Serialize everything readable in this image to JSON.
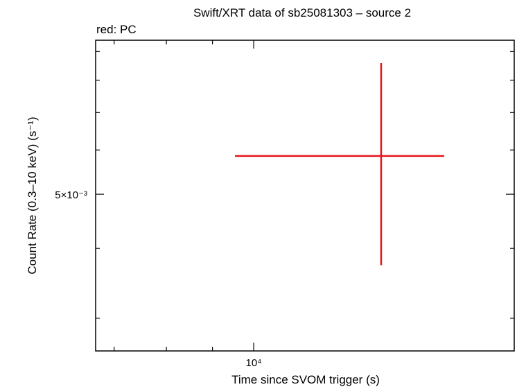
{
  "chart_data": {
    "type": "scatter",
    "title": "Swift/XRT data of sb25081303 – source 2",
    "subtitle": "red: PC",
    "x_label": "Time since SVOM trigger (s)",
    "y_label": "Count Rate (0.3–10 keV) (s⁻¹)",
    "x_log": true,
    "y_log": true,
    "xlim": [
      6677,
      19460
    ],
    "ylim": [
      0.002622,
      0.00943
    ],
    "xticks": [
      {
        "value": 10000,
        "label": "10⁴"
      }
    ],
    "yticks": [
      {
        "value": 0.005,
        "label": "5×10⁻³"
      }
    ],
    "xminor": [
      7000,
      8000,
      9000
    ],
    "yminor": [
      0.003,
      0.004,
      0.006,
      0.007,
      0.008,
      0.009
    ],
    "series": [
      {
        "color": "#e8141c",
        "x": [
          13850
        ],
        "values": [
          0.005853
        ],
        "xerr_minus": [
          4317
        ],
        "xerr_plus": [
          2420
        ],
        "yerr_minus": [
          0.00212
        ],
        "yerr_plus": [
          0.00273
        ]
      }
    ]
  }
}
